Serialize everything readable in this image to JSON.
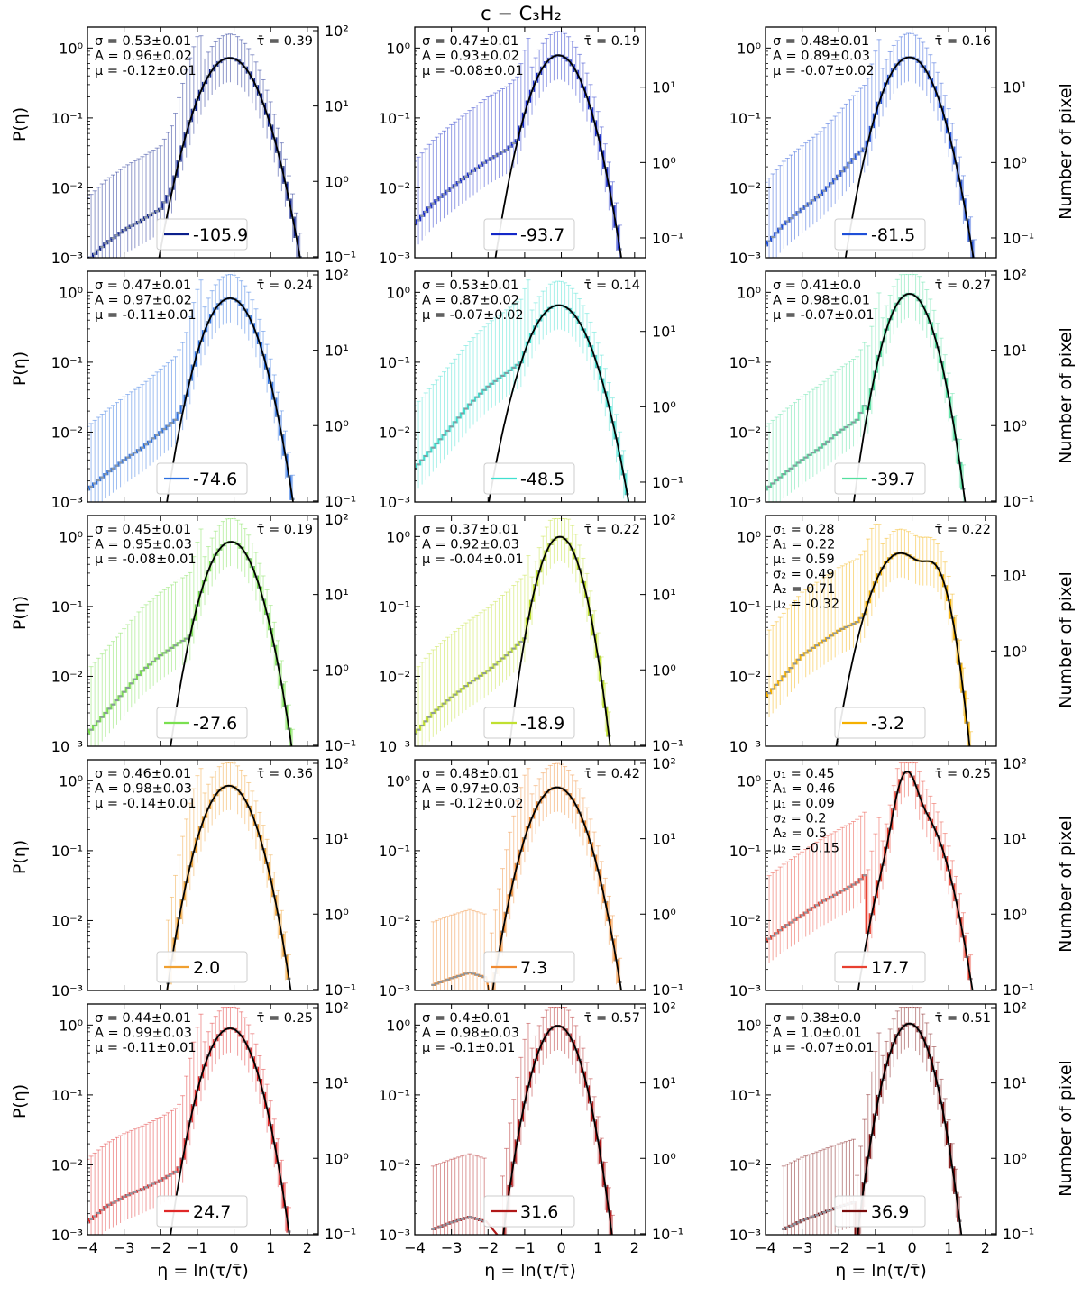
{
  "figure": {
    "title": "c − C₃H₂",
    "xlabel": "η = ln(τ/τ̄)",
    "ylabel_left": "P(η)",
    "ylabel_right": "Number of pixel",
    "x_ticks": [
      "−4",
      "−3",
      "−2",
      "−1",
      "0",
      "1",
      "2"
    ]
  },
  "chart_data": [
    {
      "type": "line",
      "legend": "-105.9",
      "color": "#0b1f8c",
      "tau": "τ̄ = 0.39",
      "params": [
        "σ = 0.53±0.01",
        "A = 0.96±0.02",
        "μ = -0.12±0.01"
      ],
      "sigma": 0.53,
      "A": 0.96,
      "mu": -0.12,
      "second": null,
      "xlim": [
        -4,
        2.3
      ],
      "ylim": [
        0.001,
        2
      ],
      "right_ticks": [
        "10²",
        "10¹",
        "10⁰",
        "10⁻¹"
      ],
      "right_exps": [
        2,
        1,
        0,
        -1
      ],
      "tail": {
        "x": [
          -4,
          -3.5,
          -3,
          -2.5,
          -2,
          -1.6,
          -1.4
        ],
        "y": [
          0.0009,
          0.0016,
          0.0025,
          0.0035,
          0.005,
          0.012,
          0.025
        ]
      }
    },
    {
      "type": "line",
      "legend": "-93.7",
      "color": "#1428c8",
      "tau": "τ̄ = 0.19",
      "params": [
        "σ = 0.47±0.01",
        "A = 0.93±0.02",
        "μ = -0.08±0.01"
      ],
      "sigma": 0.47,
      "A": 0.93,
      "mu": -0.08,
      "second": null,
      "xlim": [
        -4,
        2.3
      ],
      "ylim": [
        0.001,
        2
      ],
      "right_ticks": [
        "10¹",
        "10⁰",
        "10⁻¹"
      ],
      "right_exps": [
        1.25,
        0.25,
        -0.75
      ],
      "tail": {
        "x": [
          -4,
          -3.5,
          -3,
          -2.5,
          -2,
          -1.5,
          -1,
          -0.8
        ],
        "y": [
          0.003,
          0.006,
          0.01,
          0.016,
          0.025,
          0.035,
          0.06,
          0.1
        ]
      }
    },
    {
      "type": "line",
      "legend": "-81.5",
      "color": "#1f4fd8",
      "tau": "τ̄ = 0.16",
      "params": [
        "σ = 0.48±0.01",
        "A = 0.89±0.03",
        "μ = -0.07±0.02"
      ],
      "sigma": 0.48,
      "A": 0.89,
      "mu": -0.07,
      "second": null,
      "xlim": [
        -4,
        2.3
      ],
      "ylim": [
        0.001,
        2
      ],
      "right_ticks": [
        "10¹",
        "10⁰",
        "10⁻¹"
      ],
      "right_exps": [
        1.25,
        0.25,
        -0.75
      ],
      "tail": {
        "x": [
          -4,
          -3.5,
          -3,
          -2.5,
          -2,
          -1.5,
          -1,
          -0.7
        ],
        "y": [
          0.0015,
          0.003,
          0.005,
          0.008,
          0.015,
          0.03,
          0.05,
          0.1
        ]
      }
    },
    {
      "type": "line",
      "legend": "-74.6",
      "color": "#2b6fe0",
      "tau": "τ̄ = 0.24",
      "params": [
        "σ = 0.47±0.01",
        "A = 0.97±0.02",
        "μ = -0.11±0.01"
      ],
      "sigma": 0.47,
      "A": 0.97,
      "mu": -0.11,
      "second": null,
      "xlim": [
        -4,
        2.3
      ],
      "ylim": [
        0.001,
        2
      ],
      "right_ticks": [
        "10²",
        "10¹",
        "10⁰",
        "10⁻¹"
      ],
      "right_exps": [
        2,
        1,
        0,
        -1
      ],
      "tail": {
        "x": [
          -4,
          -3.5,
          -3,
          -2.5,
          -2,
          -1.6,
          -1.3
        ],
        "y": [
          0.0015,
          0.0025,
          0.004,
          0.006,
          0.01,
          0.015,
          0.03
        ]
      }
    },
    {
      "type": "line",
      "legend": "-48.5",
      "color": "#40e0d0",
      "tau": "τ̄ = 0.14",
      "params": [
        "σ = 0.53±0.01",
        "A = 0.87±0.02",
        "μ = -0.07±0.02"
      ],
      "sigma": 0.53,
      "A": 0.87,
      "mu": -0.07,
      "second": null,
      "xlim": [
        -4,
        2.3
      ],
      "ylim": [
        0.001,
        2
      ],
      "right_ticks": [
        "10¹",
        "10⁰",
        "10⁻¹"
      ],
      "right_exps": [
        1.25,
        0.25,
        -0.75
      ],
      "tail": {
        "x": [
          -4,
          -3.5,
          -3,
          -2.5,
          -2,
          -1.5,
          -1.1
        ],
        "y": [
          0.003,
          0.006,
          0.012,
          0.025,
          0.045,
          0.07,
          0.1
        ]
      }
    },
    {
      "type": "line",
      "legend": "-39.7",
      "color": "#55e0a0",
      "tau": "τ̄ = 0.27",
      "params": [
        "σ = 0.41±0.0",
        "A = 0.98±0.01",
        "μ = -0.07±0.01"
      ],
      "sigma": 0.41,
      "A": 0.98,
      "mu": -0.07,
      "second": null,
      "xlim": [
        -4,
        2.3
      ],
      "ylim": [
        0.001,
        2
      ],
      "right_ticks": [
        "10²",
        "10¹",
        "10⁰",
        "10⁻¹"
      ],
      "right_exps": [
        2,
        1,
        0,
        -1
      ],
      "tail": {
        "x": [
          -4,
          -3.5,
          -3,
          -2.5,
          -2,
          -1.5,
          -1.2
        ],
        "y": [
          0.0015,
          0.0025,
          0.004,
          0.006,
          0.01,
          0.015,
          0.03
        ]
      }
    },
    {
      "type": "line",
      "legend": "-27.6",
      "color": "#7ae050",
      "tau": "τ̄ = 0.19",
      "params": [
        "σ = 0.45±0.01",
        "A = 0.95±0.03",
        "μ = -0.08±0.01"
      ],
      "sigma": 0.45,
      "A": 0.95,
      "mu": -0.08,
      "second": null,
      "xlim": [
        -4,
        2.3
      ],
      "ylim": [
        0.001,
        2
      ],
      "right_ticks": [
        "10²",
        "10¹",
        "10⁰",
        "10⁻¹"
      ],
      "right_exps": [
        2,
        1,
        0,
        -1
      ],
      "tail": {
        "x": [
          -4,
          -3.5,
          -3,
          -2.5,
          -2,
          -1.5,
          -1.1
        ],
        "y": [
          0.0015,
          0.003,
          0.006,
          0.012,
          0.02,
          0.03,
          0.04
        ]
      }
    },
    {
      "type": "line",
      "legend": "-18.9",
      "color": "#c0e030",
      "tau": "τ̄ = 0.22",
      "params": [
        "σ = 0.37±0.01",
        "A = 0.92±0.03",
        "μ = -0.04±0.01"
      ],
      "sigma": 0.37,
      "A": 0.92,
      "mu": -0.04,
      "second": null,
      "xlim": [
        -4,
        2.3
      ],
      "ylim": [
        0.001,
        2
      ],
      "right_ticks": [
        "10²",
        "10¹",
        "10⁰",
        "10⁻¹"
      ],
      "right_exps": [
        2,
        1,
        0,
        -1
      ],
      "tail": {
        "x": [
          -4,
          -3.5,
          -3,
          -2.5,
          -2,
          -1.5,
          -1,
          -0.8
        ],
        "y": [
          0.0015,
          0.003,
          0.005,
          0.008,
          0.012,
          0.02,
          0.035,
          0.06
        ]
      }
    },
    {
      "type": "line",
      "legend": "-3.2",
      "color": "#f5b000",
      "tau": "τ̄ = 0.22",
      "params": [
        "σ₁ = 0.28",
        "A₁ = 0.22",
        "μ₁ = 0.59",
        "σ₂ = 0.49",
        "A₂ = 0.71",
        "μ₂ = -0.32"
      ],
      "sigma": 0.28,
      "A": 0.22,
      "mu": 0.59,
      "second": {
        "sigma": 0.49,
        "A": 0.71,
        "mu": -0.32
      },
      "xlim": [
        -4,
        2.3
      ],
      "ylim": [
        0.001,
        2
      ],
      "right_ticks": [
        "10¹",
        "10⁰"
      ],
      "right_exps": [
        1.25,
        0.25
      ],
      "tail": {
        "x": [
          -4,
          -3.5,
          -3,
          -2.5,
          -2,
          -1.5,
          -1.1
        ],
        "y": [
          0.005,
          0.01,
          0.02,
          0.03,
          0.045,
          0.06,
          0.1
        ]
      }
    },
    {
      "type": "line",
      "legend": "2.0",
      "color": "#f0a030",
      "tau": "τ̄ = 0.36",
      "params": [
        "σ = 0.46±0.01",
        "A = 0.98±0.03",
        "μ = -0.14±0.01"
      ],
      "sigma": 0.46,
      "A": 0.98,
      "mu": -0.14,
      "second": null,
      "xlim": [
        -4,
        2.3
      ],
      "ylim": [
        0.001,
        2
      ],
      "right_ticks": [
        "10²",
        "10¹",
        "10⁰",
        "10⁻¹"
      ],
      "right_exps": [
        2,
        1,
        0,
        -1
      ],
      "tail": null
    },
    {
      "type": "line",
      "legend": "7.3",
      "color": "#f08a30",
      "tau": "τ̄ = 0.42",
      "params": [
        "σ = 0.48±0.01",
        "A = 0.97±0.03",
        "μ = -0.12±0.02"
      ],
      "sigma": 0.48,
      "A": 0.97,
      "mu": -0.12,
      "second": null,
      "xlim": [
        -4,
        2.3
      ],
      "ylim": [
        0.001,
        2
      ],
      "right_ticks": [
        "10²",
        "10¹",
        "10⁰",
        "10⁻¹"
      ],
      "right_exps": [
        2,
        1,
        0,
        -1
      ],
      "tail": {
        "x": [
          -3.5,
          -3,
          -2.5,
          -2
        ],
        "y": [
          0.0012,
          0.0015,
          0.0018,
          0.0015
        ]
      }
    },
    {
      "type": "line",
      "legend": "17.7",
      "color": "#e84030",
      "tau": "τ̄ = 0.25",
      "params": [
        "σ₁ = 0.45",
        "A₁ = 0.46",
        "μ₁ = 0.09",
        "σ₂ = 0.2",
        "A₂ = 0.5",
        "μ₂ = -0.15"
      ],
      "sigma": 0.45,
      "A": 0.46,
      "mu": 0.09,
      "second": {
        "sigma": 0.2,
        "A": 0.5,
        "mu": -0.15
      },
      "xlim": [
        -4,
        2.3
      ],
      "ylim": [
        0.001,
        2
      ],
      "right_ticks": [
        "10²",
        "10¹",
        "10⁰",
        "10⁻¹"
      ],
      "right_exps": [
        2,
        1,
        0,
        -1
      ],
      "tail": {
        "x": [
          -4,
          -3.5,
          -3,
          -2.5,
          -2,
          -1.5,
          -1.2
        ],
        "y": [
          0.005,
          0.008,
          0.012,
          0.018,
          0.025,
          0.035,
          0.05
        ]
      }
    },
    {
      "type": "line",
      "legend": "24.7",
      "color": "#e02828",
      "tau": "τ̄ = 0.25",
      "params": [
        "σ = 0.44±0.01",
        "A = 0.99±0.03",
        "μ = -0.11±0.01"
      ],
      "sigma": 0.44,
      "A": 0.99,
      "mu": -0.11,
      "second": null,
      "xlim": [
        -4,
        2.3
      ],
      "ylim": [
        0.001,
        2
      ],
      "right_ticks": [
        "10²",
        "10¹",
        "10⁰",
        "10⁻¹"
      ],
      "right_exps": [
        2,
        1,
        0,
        -1
      ],
      "tail": {
        "x": [
          -4,
          -3.5,
          -3,
          -2.5,
          -2,
          -1.6,
          -1.3
        ],
        "y": [
          0.0015,
          0.0025,
          0.0035,
          0.0045,
          0.006,
          0.008,
          0.012
        ]
      }
    },
    {
      "type": "line",
      "legend": "31.6",
      "color": "#b01818",
      "tau": "τ̄ = 0.57",
      "params": [
        "σ = 0.4±0.01",
        "A = 0.98±0.03",
        "μ = -0.1±0.01"
      ],
      "sigma": 0.4,
      "A": 0.98,
      "mu": -0.1,
      "second": null,
      "xlim": [
        -4,
        2.3
      ],
      "ylim": [
        0.001,
        2
      ],
      "right_ticks": [
        "10²",
        "10¹",
        "10⁰",
        "10⁻¹"
      ],
      "right_exps": [
        2,
        1,
        0,
        -1
      ],
      "tail": {
        "x": [
          -3.5,
          -3,
          -2.5,
          -2
        ],
        "y": [
          0.0012,
          0.0015,
          0.0018,
          0.0015
        ]
      }
    },
    {
      "type": "line",
      "legend": "36.9",
      "color": "#7a0c0c",
      "tau": "τ̄ = 0.51",
      "params": [
        "σ = 0.38±0.0",
        "A = 1.0±0.01",
        "μ = -0.07±0.01"
      ],
      "sigma": 0.38,
      "A": 1.0,
      "mu": -0.07,
      "second": null,
      "xlim": [
        -4,
        2.3
      ],
      "ylim": [
        0.001,
        2
      ],
      "right_ticks": [
        "10²",
        "10¹",
        "10⁰",
        "10⁻¹"
      ],
      "right_exps": [
        2,
        1,
        0,
        -1
      ],
      "tail": {
        "x": [
          -3.5,
          -3,
          -2.5,
          -2,
          -1.5
        ],
        "y": [
          0.0012,
          0.0016,
          0.002,
          0.0025,
          0.003
        ]
      }
    }
  ]
}
